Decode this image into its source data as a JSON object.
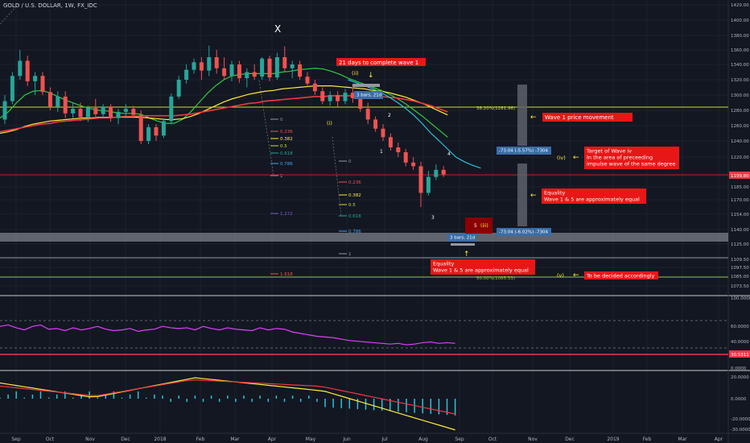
{
  "header": {
    "symbol": "GOLD / U.S. DOLLAR, 1W, FX_IDC"
  },
  "colors": {
    "bg": "#131722",
    "grid": "#1e2230",
    "up": "#26a69a",
    "down": "#ef5350",
    "red_label": "#e81717",
    "yellow": "#ffeb3b",
    "magenta": "#e040fb",
    "fib_line": "#cddc39",
    "gray_box": "#5d606b",
    "blue_label": "#3a6da8"
  },
  "chart_data": {
    "type": "candlestick",
    "y_axis_ticks": [
      "1420.00",
      "1400.00",
      "1380.00",
      "1360.00",
      "1340.00",
      "1320.00",
      "1300.00",
      "1280.00",
      "1260.00",
      "1240.00",
      "1220.00",
      "1199.80",
      "1185.00",
      "1170.00",
      "1154.00",
      "1140.00",
      "1125.00",
      "1109.50",
      "1097.50",
      "1085.00",
      "1073.50"
    ],
    "x_axis_ticks": [
      "Sep",
      "Oct",
      "Nov",
      "Dec",
      "2018",
      "Feb",
      "Mar",
      "Apr",
      "May",
      "Jun",
      "Jul",
      "Aug",
      "Sep",
      "Oct",
      "Nov",
      "Dec",
      "2019",
      "Feb",
      "Mar",
      "Apr"
    ],
    "current_price": "1199.80",
    "candles": [
      {
        "o": 1268,
        "h": 1300,
        "l": 1262,
        "c": 1292
      },
      {
        "o": 1292,
        "h": 1330,
        "l": 1288,
        "c": 1325
      },
      {
        "o": 1325,
        "h": 1360,
        "l": 1320,
        "c": 1345
      },
      {
        "o": 1345,
        "h": 1352,
        "l": 1312,
        "c": 1318
      },
      {
        "o": 1318,
        "h": 1330,
        "l": 1300,
        "c": 1325
      },
      {
        "o": 1325,
        "h": 1330,
        "l": 1300,
        "c": 1304
      },
      {
        "o": 1304,
        "h": 1310,
        "l": 1280,
        "c": 1285
      },
      {
        "o": 1285,
        "h": 1305,
        "l": 1278,
        "c": 1298
      },
      {
        "o": 1298,
        "h": 1305,
        "l": 1270,
        "c": 1276
      },
      {
        "o": 1276,
        "h": 1290,
        "l": 1270,
        "c": 1282
      },
      {
        "o": 1282,
        "h": 1290,
        "l": 1266,
        "c": 1271
      },
      {
        "o": 1271,
        "h": 1286,
        "l": 1265,
        "c": 1283
      },
      {
        "o": 1283,
        "h": 1295,
        "l": 1272,
        "c": 1275
      },
      {
        "o": 1275,
        "h": 1288,
        "l": 1270,
        "c": 1285
      },
      {
        "o": 1285,
        "h": 1288,
        "l": 1265,
        "c": 1270
      },
      {
        "o": 1270,
        "h": 1282,
        "l": 1262,
        "c": 1278
      },
      {
        "o": 1278,
        "h": 1288,
        "l": 1270,
        "c": 1282
      },
      {
        "o": 1282,
        "h": 1286,
        "l": 1270,
        "c": 1274
      },
      {
        "o": 1274,
        "h": 1280,
        "l": 1236,
        "c": 1240
      },
      {
        "o": 1240,
        "h": 1262,
        "l": 1236,
        "c": 1258
      },
      {
        "o": 1258,
        "h": 1262,
        "l": 1240,
        "c": 1247
      },
      {
        "o": 1247,
        "h": 1270,
        "l": 1244,
        "c": 1266
      },
      {
        "o": 1266,
        "h": 1302,
        "l": 1262,
        "c": 1298
      },
      {
        "o": 1298,
        "h": 1325,
        "l": 1295,
        "c": 1320
      },
      {
        "o": 1320,
        "h": 1340,
        "l": 1315,
        "c": 1333
      },
      {
        "o": 1333,
        "h": 1348,
        "l": 1328,
        "c": 1343
      },
      {
        "o": 1343,
        "h": 1350,
        "l": 1320,
        "c": 1332
      },
      {
        "o": 1332,
        "h": 1366,
        "l": 1325,
        "c": 1350
      },
      {
        "o": 1350,
        "h": 1360,
        "l": 1328,
        "c": 1335
      },
      {
        "o": 1335,
        "h": 1350,
        "l": 1320,
        "c": 1325
      },
      {
        "o": 1325,
        "h": 1345,
        "l": 1318,
        "c": 1340
      },
      {
        "o": 1340,
        "h": 1345,
        "l": 1316,
        "c": 1322
      },
      {
        "o": 1322,
        "h": 1335,
        "l": 1310,
        "c": 1330
      },
      {
        "o": 1330,
        "h": 1340,
        "l": 1320,
        "c": 1324
      },
      {
        "o": 1324,
        "h": 1350,
        "l": 1320,
        "c": 1348
      },
      {
        "o": 1348,
        "h": 1352,
        "l": 1318,
        "c": 1323
      },
      {
        "o": 1323,
        "h": 1356,
        "l": 1320,
        "c": 1350
      },
      {
        "o": 1350,
        "h": 1365,
        "l": 1330,
        "c": 1335
      },
      {
        "o": 1335,
        "h": 1345,
        "l": 1322,
        "c": 1340
      },
      {
        "o": 1340,
        "h": 1345,
        "l": 1320,
        "c": 1324
      },
      {
        "o": 1324,
        "h": 1330,
        "l": 1310,
        "c": 1315
      },
      {
        "o": 1315,
        "h": 1320,
        "l": 1300,
        "c": 1305
      },
      {
        "o": 1305,
        "h": 1310,
        "l": 1288,
        "c": 1292
      },
      {
        "o": 1292,
        "h": 1305,
        "l": 1286,
        "c": 1300
      },
      {
        "o": 1300,
        "h": 1305,
        "l": 1285,
        "c": 1292
      },
      {
        "o": 1292,
        "h": 1308,
        "l": 1288,
        "c": 1303
      },
      {
        "o": 1303,
        "h": 1310,
        "l": 1290,
        "c": 1296
      },
      {
        "o": 1296,
        "h": 1302,
        "l": 1278,
        "c": 1282
      },
      {
        "o": 1282,
        "h": 1290,
        "l": 1262,
        "c": 1268
      },
      {
        "o": 1268,
        "h": 1272,
        "l": 1252,
        "c": 1256
      },
      {
        "o": 1256,
        "h": 1262,
        "l": 1240,
        "c": 1245
      },
      {
        "o": 1245,
        "h": 1250,
        "l": 1228,
        "c": 1232
      },
      {
        "o": 1232,
        "h": 1238,
        "l": 1220,
        "c": 1226
      },
      {
        "o": 1226,
        "h": 1230,
        "l": 1210,
        "c": 1214
      },
      {
        "o": 1214,
        "h": 1220,
        "l": 1206,
        "c": 1210
      },
      {
        "o": 1210,
        "h": 1215,
        "l": 1162,
        "c": 1178
      },
      {
        "o": 1178,
        "h": 1205,
        "l": 1175,
        "c": 1198
      },
      {
        "o": 1198,
        "h": 1212,
        "l": 1194,
        "c": 1206
      },
      {
        "o": 1206,
        "h": 1210,
        "l": 1198,
        "c": 1201
      }
    ],
    "ma_lines": [
      {
        "color": "#2ecc40",
        "values": [
          1270,
          1278,
          1290,
          1300,
          1305,
          1306,
          1303,
          1298,
          1293,
          1289,
          1285,
          1282,
          1280,
          1279,
          1277,
          1276,
          1276,
          1275,
          1270,
          1266,
          1263,
          1263,
          1268,
          1278,
          1290,
          1302,
          1312,
          1320,
          1325,
          1327,
          1328,
          1328,
          1328,
          1328,
          1330,
          1331,
          1333,
          1334,
          1335,
          1334,
          1331,
          1327,
          1322,
          1318,
          1314,
          1310,
          1306,
          1301,
          1295,
          1288,
          1280,
          1272,
          1263,
          1254,
          1245
        ]
      },
      {
        "color": "#ffeb3b",
        "values": [
          1250,
          1252,
          1255,
          1259,
          1262,
          1264,
          1266,
          1267,
          1268,
          1269,
          1270,
          1270,
          1271,
          1271,
          1271,
          1271,
          1271,
          1271,
          1270,
          1269,
          1268,
          1268,
          1269,
          1272,
          1276,
          1281,
          1286,
          1291,
          1295,
          1298,
          1301,
          1303,
          1305,
          1306,
          1308,
          1309,
          1310,
          1311,
          1312,
          1312,
          1312,
          1311,
          1310,
          1309,
          1308,
          1306,
          1305,
          1303,
          1300,
          1297,
          1293,
          1289,
          1284,
          1279,
          1274
        ]
      },
      {
        "color": "#f23645",
        "values": [
          1252,
          1254,
          1256,
          1258,
          1260,
          1262,
          1263,
          1265,
          1266,
          1267,
          1268,
          1269,
          1270,
          1270,
          1271,
          1272,
          1272,
          1273,
          1273,
          1273,
          1273,
          1273,
          1274,
          1275,
          1277,
          1279,
          1281,
          1283,
          1285,
          1287,
          1289,
          1290,
          1292,
          1293,
          1294,
          1295,
          1296,
          1297,
          1298,
          1298,
          1299,
          1299,
          1299,
          1299,
          1299,
          1298,
          1298,
          1297,
          1296,
          1294,
          1292,
          1289,
          1286,
          1282,
          1278
        ]
      },
      {
        "color": "#26c6da",
        "values": [
          null,
          null,
          null,
          null,
          null,
          null,
          null,
          null,
          null,
          null,
          null,
          null,
          null,
          null,
          null,
          null,
          null,
          null,
          null,
          null,
          null,
          null,
          null,
          null,
          null,
          null,
          null,
          null,
          null,
          null,
          null,
          null,
          null,
          null,
          null,
          null,
          null,
          null,
          null,
          null,
          null,
          null,
          1320,
          1316,
          1312,
          1308,
          1303,
          1297,
          1290,
          1282,
          1273,
          1262,
          1250,
          1240,
          1230,
          1220,
          1215,
          1211,
          1208
        ]
      }
    ],
    "fib_levels_left": [
      "0",
      "0.236",
      "0.382",
      "0.5",
      "0.618",
      "0.786",
      "1",
      "1.272",
      "1.618"
    ],
    "fib_levels_right": [
      "0",
      "0.236",
      "0.382",
      "0.5",
      "0.618",
      "0.786",
      "1"
    ],
    "hlines": [
      {
        "label": "38.20%(1281.96)",
        "value": 1281.96,
        "color": "#cddc39"
      },
      {
        "label": "50.00%(1085.53)",
        "value": 1085.53,
        "color": "#8bc34a"
      }
    ],
    "rsi": {
      "ticks": [
        "100.0000",
        "60.0000",
        "40.0000",
        "0.0000"
      ],
      "current": "30.5311",
      "values": [
        60,
        62,
        58,
        55,
        60,
        62,
        56,
        57,
        54,
        58,
        55,
        57,
        60,
        56,
        54,
        55,
        57,
        53,
        55,
        56,
        60,
        58,
        57,
        58,
        55,
        60,
        57,
        55,
        58,
        56,
        55,
        54,
        58,
        55,
        57,
        56,
        52,
        50,
        48,
        46,
        45,
        44,
        42,
        40,
        39,
        38,
        37,
        36,
        35,
        36,
        34,
        35,
        37,
        38,
        36,
        37,
        36
      ]
    },
    "macd": {
      "ticks": [
        "20.0000",
        "0.0000",
        "-20.0000",
        "-30.0000"
      ]
    }
  },
  "annotations": {
    "x_label": "X",
    "days_label": "21 days to complete wave 1",
    "wave_ii": "(ii)",
    "wave_i": "(i)",
    "bars_top": "3 bars, 21d",
    "bars_bottom": "3 bars, 21d",
    "wave1_move": "Wave 1 price movement",
    "measure_top": "-73.04 (-5.57%) -7304",
    "measure_bottom": "-73.04 (-6.02%) -7304",
    "wave_iv": "(iv)",
    "target_iv_1": "Target of Wave iv",
    "target_iv_2": "In the area of preceeding",
    "target_iv_3": "impulse wave of the same degree",
    "equality_r_1": "Equality",
    "equality_r_2": "Wave 1 & 5 are approximately equal",
    "equality_b_1": "Equality",
    "equality_b_2": "Wave 1 & 5 are approximately equal",
    "wave_iii_5": "5",
    "wave_iii": "(iii)",
    "wave_v": "(v)",
    "decided": "To be decided accordingly",
    "w1": "1",
    "w2": "2",
    "w3": "3",
    "w4": "4"
  }
}
